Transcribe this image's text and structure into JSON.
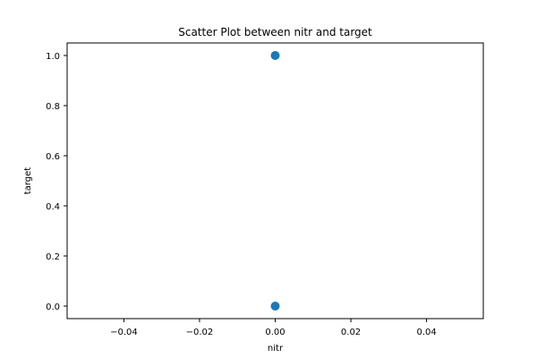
{
  "chart_data": {
    "type": "scatter",
    "title": "Scatter Plot between nitr and target",
    "xlabel": "nitr",
    "ylabel": "target",
    "xlim": [
      -0.055,
      0.055
    ],
    "ylim": [
      -0.05,
      1.05
    ],
    "xticks": [
      -0.04,
      -0.02,
      0.0,
      0.02,
      0.04
    ],
    "xtick_labels": [
      "−0.04",
      "−0.02",
      "0.00",
      "0.02",
      "0.04"
    ],
    "yticks": [
      0.0,
      0.2,
      0.4,
      0.6,
      0.8,
      1.0
    ],
    "ytick_labels": [
      "0.0",
      "0.2",
      "0.4",
      "0.6",
      "0.8",
      "1.0"
    ],
    "grid": false,
    "series": [
      {
        "color": "#1f77b4",
        "points": [
          {
            "x": 0.0,
            "y": 1.0
          },
          {
            "x": 0.0,
            "y": 0.0
          }
        ]
      }
    ]
  }
}
